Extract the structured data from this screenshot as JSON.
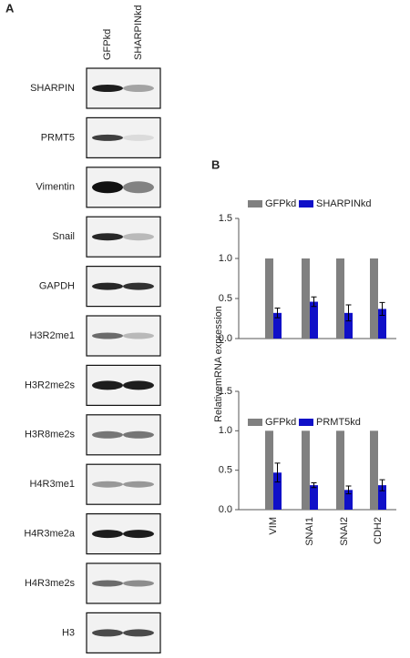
{
  "panel_a": {
    "label": "A",
    "lanes": [
      "GFPkd",
      "SHARPINkd"
    ],
    "rows": [
      "SHARPIN",
      "PRMT5",
      "Vimentin",
      "Snail",
      "GAPDH",
      "H3R2me1",
      "H3R2me2s",
      "H3R8me2s",
      "H4R3me1",
      "H4R3me2a",
      "H4R3me2s",
      "H3"
    ]
  },
  "panel_b": {
    "label": "B"
  },
  "chart_data": [
    {
      "type": "bar",
      "ylabel": "RelativemRNA expression",
      "categories": [
        null,
        null,
        null,
        null
      ],
      "series": [
        {
          "name": "GFPkd",
          "color": "#808080",
          "values": [
            1.0,
            1.0,
            1.0,
            1.0
          ]
        },
        {
          "name": "SHARPINkd",
          "color": "#1010c8",
          "values": [
            0.32,
            0.46,
            0.32,
            0.37
          ],
          "errors": [
            0.06,
            0.06,
            0.1,
            0.08
          ]
        }
      ],
      "ylim": [
        0,
        1.5
      ],
      "yticks": [
        {
          "value": 0,
          "label": "0.0"
        },
        0.5,
        {
          "value": 1,
          "label": "1.0"
        },
        1.5
      ]
    },
    {
      "type": "bar",
      "categories": [
        "VIM",
        "SNAI1",
        "SNAI2",
        "CDH2"
      ],
      "series": [
        {
          "name": "GFPkd",
          "color": "#808080",
          "values": [
            1.0,
            1.0,
            1.0,
            1.0
          ]
        },
        {
          "name": "PRMT5kd",
          "color": "#1010c8",
          "values": [
            0.47,
            0.31,
            0.25,
            0.31
          ],
          "errors": [
            0.12,
            0.03,
            0.05,
            0.07
          ]
        }
      ],
      "ylim": [
        0,
        1.5
      ],
      "yticks": [
        {
          "value": 0,
          "label": "0.0"
        },
        0.5,
        {
          "value": 1,
          "label": "1.0"
        },
        1.5
      ]
    }
  ]
}
